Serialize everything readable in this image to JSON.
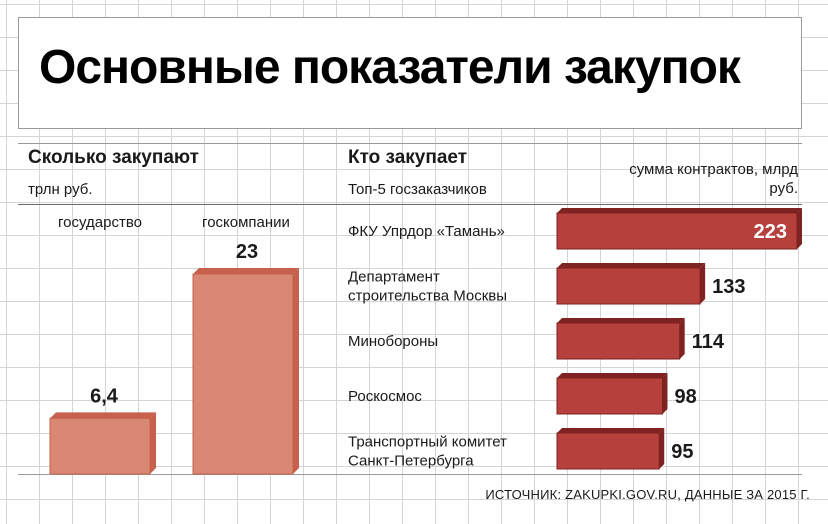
{
  "title": "Основные показатели закупок",
  "source": "ИСТОЧНИК: ZAKUPKI.GOV.RU, ДАННЫЕ ЗА 2015 Г.",
  "colors": {
    "left_bar_face": "#d98873",
    "left_bar_side": "#c7604c",
    "right_bar_face": "#b5403c",
    "right_bar_side": "#7f2222",
    "value_on_bar": "#ffffff"
  },
  "chart_data": [
    {
      "type": "bar",
      "title": "Сколько закупают",
      "ylabel": "трлн руб.",
      "categories": [
        "государство",
        "госкомпании"
      ],
      "values": [
        6.4,
        23
      ],
      "value_labels": [
        "6,4",
        "23"
      ],
      "ylim": [
        0,
        23
      ],
      "grid": true
    },
    {
      "type": "bar",
      "orientation": "horizontal",
      "title": "Кто закупает",
      "subtitle": "Топ-5 госзаказчиков",
      "xlabel": "сумма контрактов, млрд руб.",
      "categories": [
        "ФКУ Упрдор «Тамань»",
        "Департамент строительства Москвы",
        "Минобороны",
        "Роскосмос",
        "Транспортный комитет Санкт-Петербурга"
      ],
      "category_lines": [
        [
          "ФКУ Упрдор «Тамань»"
        ],
        [
          "Департамент",
          "строительства Москвы"
        ],
        [
          "Минобороны"
        ],
        [
          "Роскосмос"
        ],
        [
          "Транспортный комитет",
          "Санкт-Петербурга"
        ]
      ],
      "values": [
        223,
        133,
        114,
        98,
        95
      ],
      "value_labels": [
        "223",
        "133",
        "114",
        "98",
        "95"
      ],
      "xlim": [
        0,
        223
      ],
      "grid": true
    }
  ]
}
